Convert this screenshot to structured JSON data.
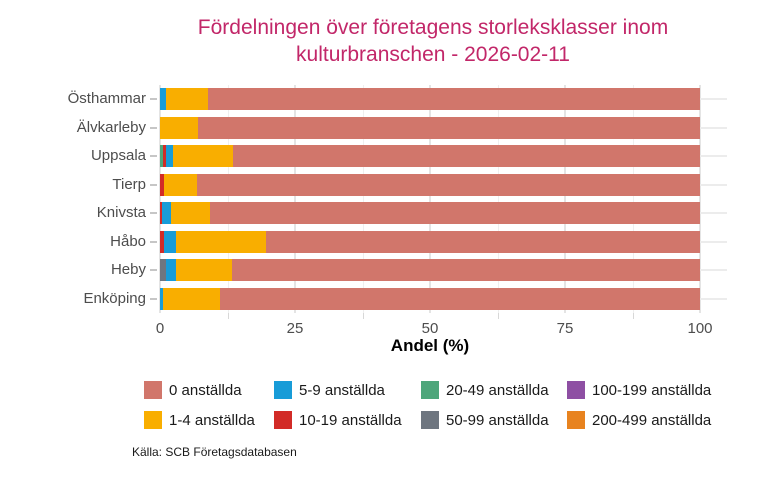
{
  "title": {
    "line1": "Fördelningen över företagens storleksklasser inom",
    "line2": "kulturbranschen - 2026-02-11",
    "color": "#c22769"
  },
  "chart_data": {
    "type": "bar",
    "orientation": "horizontal",
    "stacked": true,
    "title": "Fördelningen över företagens storleksklasser inom kulturbranschen - 2026-02-11",
    "xlabel": "Andel (%)",
    "ylabel": "",
    "xlim": [
      0,
      100
    ],
    "x_ticks": [
      0,
      25,
      50,
      75,
      100
    ],
    "x_minor_gridlines": [
      12.5,
      37.5,
      62.5,
      87.5
    ],
    "grid": true,
    "legend_position": "bottom (2 rows × 4 columns, column-major order)",
    "stack_order_note": "segments drawn left-to-right from largest size class to '0 anställda' (rightmost)",
    "categories": [
      "Östhammar",
      "Älvkarleby",
      "Uppsala",
      "Tierp",
      "Knivsta",
      "Håbo",
      "Heby",
      "Enköping"
    ],
    "series": [
      {
        "name": "0 anställda",
        "color": "#d1766b",
        "values": [
          91.1,
          93.0,
          86.5,
          93.1,
          90.7,
          80.4,
          86.7,
          88.9
        ]
      },
      {
        "name": "1-4 anställda",
        "color": "#f9ae00",
        "values": [
          7.8,
          7.0,
          11.0,
          6.2,
          7.3,
          16.7,
          10.3,
          10.5
        ]
      },
      {
        "name": "5-9 anställda",
        "color": "#189cd8",
        "values": [
          1.1,
          0,
          1.3,
          0,
          1.6,
          2.2,
          1.9,
          0.6
        ]
      },
      {
        "name": "10-19 anställda",
        "color": "#d22b27",
        "values": [
          0,
          0,
          0.6,
          0.7,
          0.4,
          0.7,
          0,
          0
        ]
      },
      {
        "name": "20-49 anställda",
        "color": "#4ea67b",
        "values": [
          0,
          0,
          0.6,
          0,
          0,
          0,
          0,
          0
        ]
      },
      {
        "name": "50-99 anställda",
        "color": "#6e7680",
        "values": [
          0,
          0,
          0,
          0,
          0,
          0,
          1.1,
          0
        ]
      },
      {
        "name": "100-199 anställda",
        "color": "#8e4fa3",
        "values": [
          0,
          0,
          0,
          0,
          0,
          0,
          0,
          0
        ]
      },
      {
        "name": "200-499 anställda",
        "color": "#e8831f",
        "values": [
          0,
          0,
          0,
          0,
          0,
          0,
          0,
          0
        ]
      }
    ]
  },
  "axis_colors": {
    "tick_label": "#4d4d4d",
    "gridline": "#ececec"
  },
  "source": "Källa: SCB Företagsdatabasen"
}
